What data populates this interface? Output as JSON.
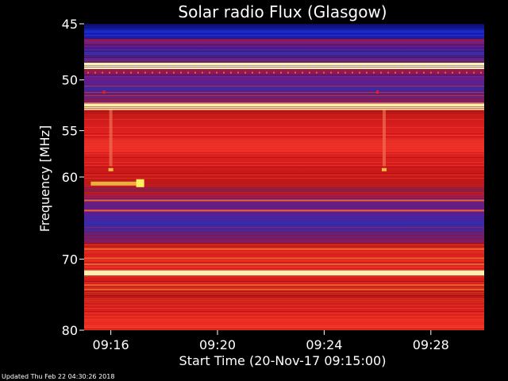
{
  "chart_data": {
    "type": "heatmap",
    "title": "Solar radio Flux (Glasgow)",
    "xlabel": "Start Time (20-Nov-17 09:15:00)",
    "ylabel": "Frequency [MHz]",
    "x_ticks": [
      "09:16",
      "09:20",
      "09:24",
      "09:28"
    ],
    "y_ticks": [
      "45",
      "50",
      "55",
      "60",
      "70",
      "80"
    ],
    "y_scale": "log",
    "ylim": [
      45,
      80
    ],
    "xlim": [
      "09:15:00",
      "09:30:00"
    ],
    "colors": {
      "background": "#000000",
      "low": "#1a1aa0",
      "mid": "#d01818",
      "high": "#f08030",
      "peak": "#fff0b0"
    },
    "bands": [
      {
        "f_start": 45.0,
        "f_end": 46.3,
        "level": "low"
      },
      {
        "f_start": 46.3,
        "f_end": 48.4,
        "level": "low-mid"
      },
      {
        "f_start": 48.4,
        "f_end": 49.0,
        "level": "peak"
      },
      {
        "f_start": 49.0,
        "f_end": 52.2,
        "level": "low-mid"
      },
      {
        "f_start": 52.2,
        "f_end": 52.9,
        "level": "peak"
      },
      {
        "f_start": 52.9,
        "f_end": 57.5,
        "level": "mid"
      },
      {
        "f_start": 57.5,
        "f_end": 62.0,
        "level": "mid-high"
      },
      {
        "f_start": 62.0,
        "f_end": 68.0,
        "level": "low-mid"
      },
      {
        "f_start": 68.0,
        "f_end": 71.5,
        "level": "mid"
      },
      {
        "f_start": 71.5,
        "f_end": 72.2,
        "level": "peak"
      },
      {
        "f_start": 72.2,
        "f_end": 75.0,
        "level": "mid-high"
      },
      {
        "f_start": 75.0,
        "f_end": 80.0,
        "level": "mid"
      }
    ],
    "features": [
      {
        "type": "burst",
        "time_start": "09:15:15",
        "time_end": "09:17:15",
        "f": 60.7
      },
      {
        "type": "vertical-line",
        "time": "09:16:00"
      },
      {
        "type": "vertical-line",
        "time": "09:26:15"
      }
    ]
  },
  "footer": {
    "updated": "Updated Thu Feb 22 04:30:26 2018"
  }
}
